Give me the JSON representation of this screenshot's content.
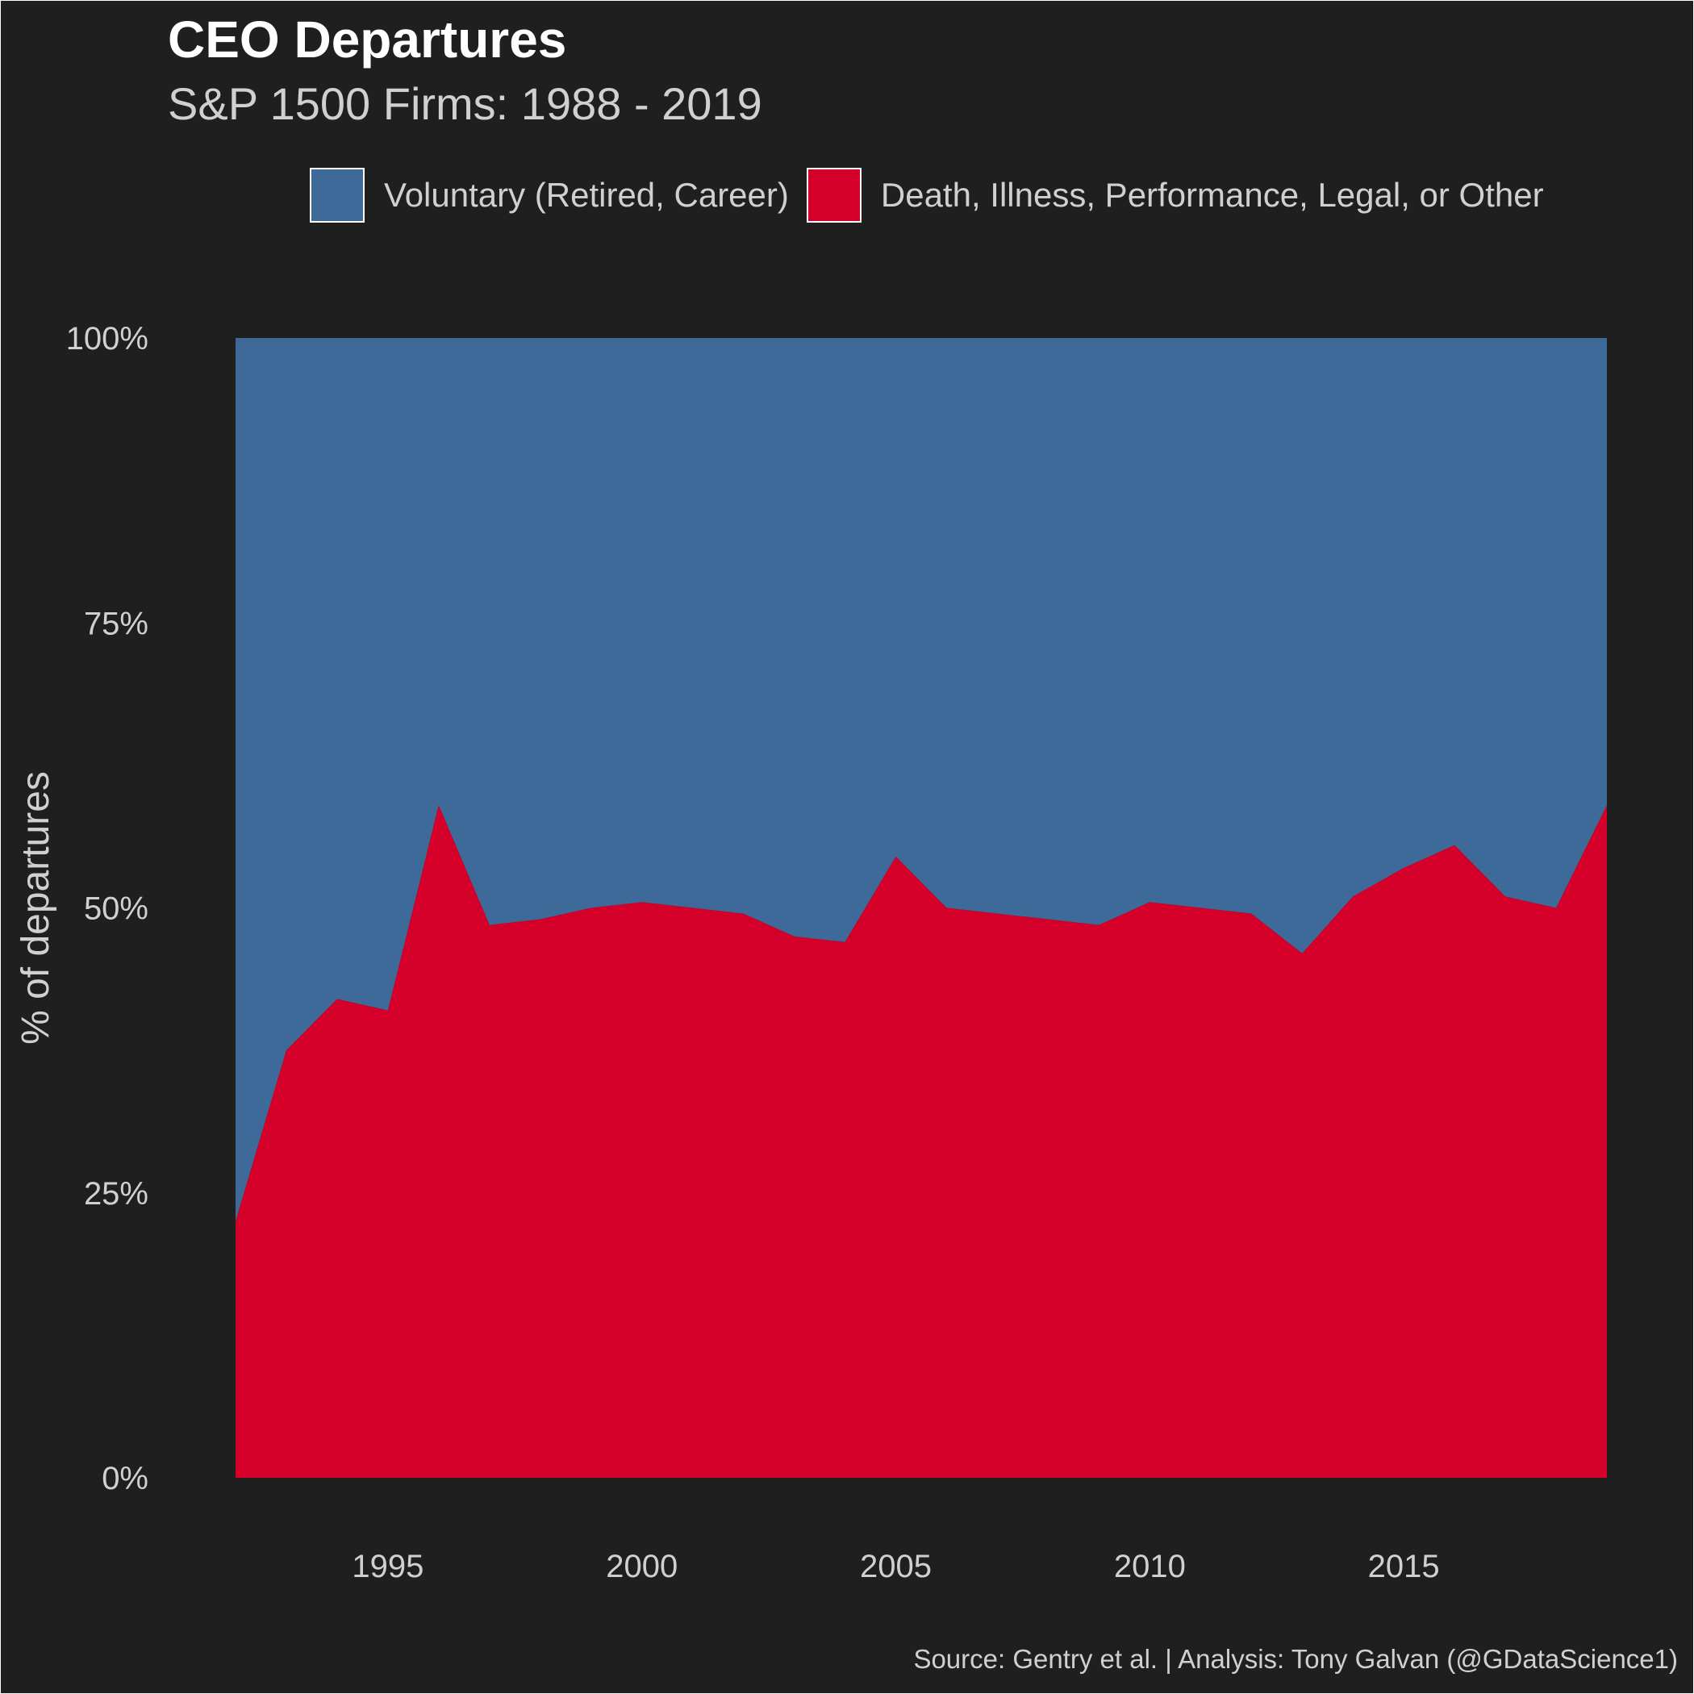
{
  "title": "CEO Departures",
  "subtitle": "S&P 1500 Firms: 1988 - 2019",
  "caption": "Source: Gentry et al.  |  Analysis: Tony Galvan (@GDataScience1)",
  "legend": [
    {
      "label": "Voluntary (Retired, Career)",
      "color": "#3d6a99"
    },
    {
      "label": "Death, Illness, Performance, Legal, or Other",
      "color": "#d50029"
    }
  ],
  "chart_data": {
    "type": "area",
    "stacked": "fill",
    "ylabel": "% of departures",
    "xlabel": "",
    "xlim": [
      1992,
      2019
    ],
    "ylim": [
      0,
      100
    ],
    "x_ticks": [
      1995,
      2000,
      2005,
      2010,
      2015
    ],
    "y_ticks": [
      0,
      25,
      50,
      75,
      100
    ],
    "y_tick_labels": [
      "0%",
      "25%",
      "50%",
      "75%",
      "100%"
    ],
    "grid": false,
    "legend_position": "top",
    "x": [
      1992,
      1993,
      1994,
      1995,
      1996,
      1997,
      1998,
      1999,
      2000,
      2001,
      2002,
      2003,
      2004,
      2005,
      2006,
      2007,
      2008,
      2009,
      2010,
      2011,
      2012,
      2013,
      2014,
      2015,
      2016,
      2017,
      2018,
      2019
    ],
    "series": [
      {
        "name": "Voluntary (Retired, Career)",
        "color": "#3d6a99",
        "values": [
          77.5,
          62.5,
          58,
          59,
          41,
          51.5,
          51,
          50,
          49.5,
          50,
          50.5,
          52.5,
          53,
          45.5,
          50,
          50.5,
          51,
          51.5,
          49.5,
          50,
          50.5,
          54,
          49,
          46.5,
          44.5,
          49,
          50,
          41
        ]
      },
      {
        "name": "Death, Illness, Performance, Legal, or Other",
        "color": "#d50029",
        "values": [
          22.5,
          37.5,
          42,
          41,
          59,
          48.5,
          49,
          50,
          50.5,
          50,
          49.5,
          47.5,
          47,
          54.5,
          50,
          49.5,
          49,
          48.5,
          50.5,
          50,
          49.5,
          46,
          51,
          53.5,
          55.5,
          51,
          50,
          59
        ]
      }
    ]
  }
}
